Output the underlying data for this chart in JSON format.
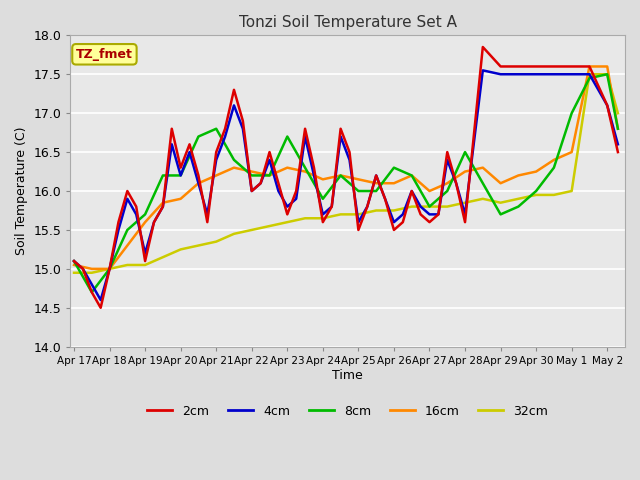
{
  "title": "Tonzi Soil Temperature Set A",
  "xlabel": "Time",
  "ylabel": "Soil Temperature (C)",
  "ylim": [
    14.0,
    18.0
  ],
  "yticks": [
    14.0,
    14.5,
    15.0,
    15.5,
    16.0,
    16.5,
    17.0,
    17.5,
    18.0
  ],
  "xtick_labels": [
    "Apr 17",
    "Apr 18",
    "Apr 19",
    "Apr 20",
    "Apr 21",
    "Apr 22",
    "Apr 23",
    "Apr 24",
    "Apr 25",
    "Apr 26",
    "Apr 27",
    "Apr 28",
    "Apr 29",
    "Apr 30",
    "May 1",
    "May 2"
  ],
  "annotation_label": "TZ_fmet",
  "annotation_color": "#aa0000",
  "annotation_bg": "#ffff99",
  "annotation_border": "#aaaa00",
  "legend_entries": [
    "2cm",
    "4cm",
    "8cm",
    "16cm",
    "32cm"
  ],
  "line_colors": [
    "#dd0000",
    "#0000cc",
    "#00bb00",
    "#ff8800",
    "#cccc00"
  ],
  "x_2cm": [
    0,
    0.25,
    0.5,
    0.75,
    1.0,
    1.25,
    1.5,
    1.75,
    2.0,
    2.25,
    2.5,
    2.75,
    3.0,
    3.25,
    3.5,
    3.75,
    4.0,
    4.25,
    4.5,
    4.75,
    5.0,
    5.25,
    5.5,
    5.75,
    6.0,
    6.25,
    6.5,
    6.75,
    7.0,
    7.25,
    7.5,
    7.75,
    8.0,
    8.25,
    8.5,
    8.75,
    9.0,
    9.25,
    9.5,
    9.75,
    10.0,
    10.25,
    10.5,
    10.75,
    11.0,
    11.5,
    12.0,
    12.5,
    13.0,
    13.5,
    14.0,
    14.5,
    15.0,
    15.3
  ],
  "y_2cm": [
    15.1,
    15.0,
    14.7,
    14.5,
    15.0,
    15.6,
    16.0,
    15.8,
    15.1,
    15.6,
    15.8,
    16.8,
    16.3,
    16.6,
    16.2,
    15.6,
    16.5,
    16.8,
    17.3,
    16.9,
    16.0,
    16.1,
    16.5,
    16.1,
    15.7,
    16.0,
    16.8,
    16.3,
    15.6,
    15.8,
    16.8,
    16.5,
    15.5,
    15.8,
    16.2,
    15.9,
    15.5,
    15.6,
    16.0,
    15.7,
    15.6,
    15.7,
    16.5,
    16.1,
    15.6,
    17.85,
    17.6,
    17.6,
    17.6,
    17.6,
    17.6,
    17.6,
    17.1,
    16.5
  ],
  "x_4cm": [
    0,
    0.25,
    0.5,
    0.75,
    1.0,
    1.25,
    1.5,
    1.75,
    2.0,
    2.25,
    2.5,
    2.75,
    3.0,
    3.25,
    3.5,
    3.75,
    4.0,
    4.25,
    4.5,
    4.75,
    5.0,
    5.25,
    5.5,
    5.75,
    6.0,
    6.25,
    6.5,
    6.75,
    7.0,
    7.25,
    7.5,
    7.75,
    8.0,
    8.25,
    8.5,
    8.75,
    9.0,
    9.25,
    9.5,
    9.75,
    10.0,
    10.25,
    10.5,
    10.75,
    11.0,
    11.5,
    12.0,
    12.5,
    13.0,
    13.5,
    14.0,
    14.5,
    15.0,
    15.3
  ],
  "y_4cm": [
    15.1,
    15.0,
    14.8,
    14.6,
    15.0,
    15.5,
    15.9,
    15.7,
    15.2,
    15.6,
    15.8,
    16.6,
    16.2,
    16.5,
    16.1,
    15.7,
    16.4,
    16.7,
    17.1,
    16.8,
    16.0,
    16.1,
    16.4,
    16.0,
    15.8,
    15.9,
    16.7,
    16.2,
    15.7,
    15.8,
    16.7,
    16.4,
    15.6,
    15.8,
    16.2,
    15.9,
    15.6,
    15.7,
    16.0,
    15.8,
    15.7,
    15.7,
    16.4,
    16.1,
    15.7,
    17.55,
    17.5,
    17.5,
    17.5,
    17.5,
    17.5,
    17.5,
    17.1,
    16.6
  ],
  "x_8cm": [
    0,
    0.5,
    1.0,
    1.5,
    2.0,
    2.5,
    3.0,
    3.5,
    4.0,
    4.5,
    5.0,
    5.5,
    6.0,
    6.5,
    7.0,
    7.5,
    8.0,
    8.5,
    9.0,
    9.5,
    10.0,
    10.5,
    11.0,
    11.5,
    12.0,
    12.5,
    13.0,
    13.5,
    14.0,
    14.5,
    15.0,
    15.3
  ],
  "y_8cm": [
    15.1,
    14.7,
    15.0,
    15.5,
    15.7,
    16.2,
    16.2,
    16.7,
    16.8,
    16.4,
    16.2,
    16.2,
    16.7,
    16.3,
    15.9,
    16.2,
    16.0,
    16.0,
    16.3,
    16.2,
    15.8,
    16.0,
    16.5,
    16.1,
    15.7,
    15.8,
    16.0,
    16.3,
    17.0,
    17.45,
    17.5,
    16.8
  ],
  "x_16cm": [
    0,
    0.5,
    1.0,
    1.5,
    2.0,
    2.5,
    3.0,
    3.5,
    4.0,
    4.5,
    5.0,
    5.5,
    6.0,
    6.5,
    7.0,
    7.5,
    8.0,
    8.5,
    9.0,
    9.5,
    10.0,
    10.5,
    11.0,
    11.5,
    12.0,
    12.5,
    13.0,
    13.5,
    14.0,
    14.5,
    15.0,
    15.3
  ],
  "y_16cm": [
    15.05,
    15.0,
    15.0,
    15.3,
    15.6,
    15.85,
    15.9,
    16.1,
    16.2,
    16.3,
    16.25,
    16.2,
    16.3,
    16.25,
    16.15,
    16.2,
    16.15,
    16.1,
    16.1,
    16.2,
    16.0,
    16.1,
    16.25,
    16.3,
    16.1,
    16.2,
    16.25,
    16.4,
    16.5,
    17.6,
    17.6,
    16.8
  ],
  "x_32cm": [
    0,
    0.5,
    1.0,
    1.5,
    2.0,
    2.5,
    3.0,
    3.5,
    4.0,
    4.5,
    5.0,
    5.5,
    6.0,
    6.5,
    7.0,
    7.5,
    8.0,
    8.5,
    9.0,
    9.5,
    10.0,
    10.5,
    11.0,
    11.5,
    12.0,
    12.5,
    13.0,
    13.5,
    14.0,
    14.5,
    15.0,
    15.3
  ],
  "y_32cm": [
    14.95,
    14.95,
    15.0,
    15.05,
    15.05,
    15.15,
    15.25,
    15.3,
    15.35,
    15.45,
    15.5,
    15.55,
    15.6,
    15.65,
    15.65,
    15.7,
    15.7,
    15.75,
    15.75,
    15.8,
    15.8,
    15.8,
    15.85,
    15.9,
    15.85,
    15.9,
    15.95,
    15.95,
    16.0,
    17.5,
    17.5,
    17.0
  ]
}
